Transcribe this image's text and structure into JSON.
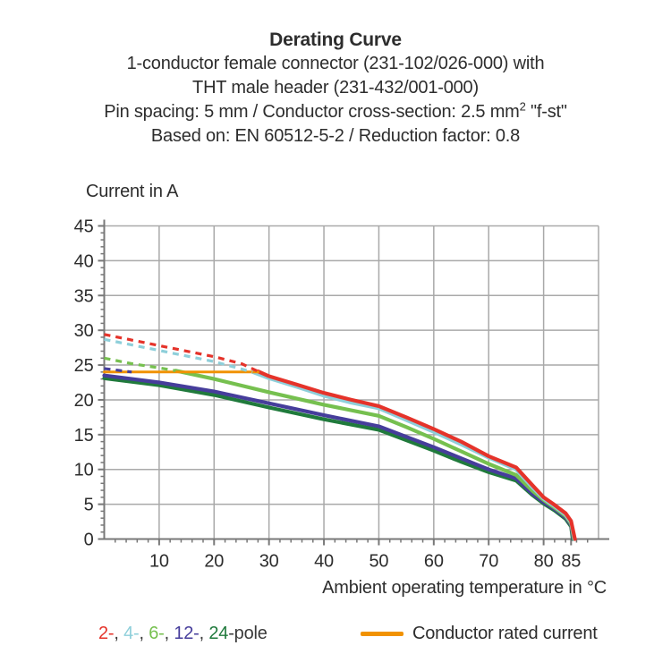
{
  "header": {
    "title": "Derating Curve",
    "subtitle1": "1-conductor female connector (231-102/026-000) with",
    "subtitle2": "THT male header (231-432/001-000)",
    "subtitle3_pre": "Pin spacing: 5 mm / Conductor cross-section: 2.5 mm",
    "subtitle3_sup": "2",
    "subtitle3_post": " \"f-st\"",
    "subtitle4": "Based on: EN 60512-5-2 / Reduction factor: 0.8"
  },
  "chart_data": {
    "type": "line",
    "title": "Derating Curve",
    "xlabel": "Ambient operating temperature in °C",
    "ylabel": "Current in A",
    "xlim": [
      0,
      90
    ],
    "ylim": [
      0,
      45
    ],
    "x_major_ticks": [
      10,
      20,
      30,
      40,
      50,
      60,
      70,
      80,
      85
    ],
    "x_minor_step": 2,
    "y_major_ticks": [
      0,
      5,
      10,
      15,
      20,
      25,
      30,
      35,
      40,
      45
    ],
    "y_minor_step": 1,
    "grid": true,
    "grid_x_step": 10,
    "grid_y_step": 5,
    "colors": {
      "grid": "#a9a9a9",
      "axis": "#787878",
      "text": "#2d2d2d"
    },
    "series": [
      {
        "name": "24-pole",
        "color": "#207a3c",
        "solid": [
          [
            0,
            23.1
          ],
          [
            10,
            22.1
          ],
          [
            20,
            20.7
          ],
          [
            30,
            18.9
          ],
          [
            40,
            17.2
          ],
          [
            50,
            15.7
          ],
          [
            55,
            14.2
          ],
          [
            60,
            12.7
          ],
          [
            65,
            11.1
          ],
          [
            70,
            9.6
          ],
          [
            75,
            8.4
          ],
          [
            78,
            6.3
          ],
          [
            80,
            5.1
          ],
          [
            82,
            4.1
          ],
          [
            84,
            2.9
          ],
          [
            85,
            1.8
          ],
          [
            85.3,
            0
          ]
        ]
      },
      {
        "name": "12-pole",
        "color": "#463d9b",
        "dashed": [
          [
            0,
            24.5
          ],
          [
            5,
            24.0
          ]
        ],
        "solid": [
          [
            0,
            23.5
          ],
          [
            10,
            22.5
          ],
          [
            20,
            21.2
          ],
          [
            30,
            19.5
          ],
          [
            40,
            17.8
          ],
          [
            50,
            16.2
          ],
          [
            55,
            14.7
          ],
          [
            60,
            13.2
          ],
          [
            65,
            11.6
          ],
          [
            70,
            10.0
          ],
          [
            75,
            8.7
          ],
          [
            78,
            6.5
          ],
          [
            80,
            5.3
          ],
          [
            82,
            4.3
          ],
          [
            84,
            3.1
          ],
          [
            85,
            2.0
          ],
          [
            85.4,
            0
          ]
        ]
      },
      {
        "name": "6-pole",
        "color": "#76c04f",
        "dashed": [
          [
            0,
            26.0
          ],
          [
            5,
            25.2
          ],
          [
            10,
            24.6
          ],
          [
            13,
            24.2
          ]
        ],
        "solid": [
          [
            13,
            24.2
          ],
          [
            20,
            23.0
          ],
          [
            30,
            21.1
          ],
          [
            40,
            19.3
          ],
          [
            50,
            17.7
          ],
          [
            55,
            16.1
          ],
          [
            60,
            14.4
          ],
          [
            65,
            12.6
          ],
          [
            70,
            10.8
          ],
          [
            75,
            9.2
          ],
          [
            78,
            6.9
          ],
          [
            80,
            5.6
          ],
          [
            82,
            4.5
          ],
          [
            84,
            3.3
          ],
          [
            85,
            2.2
          ],
          [
            85.5,
            0
          ]
        ]
      },
      {
        "name": "4-pole",
        "color": "#8ecfda",
        "dashed": [
          [
            0,
            28.7
          ],
          [
            10,
            27.1
          ],
          [
            20,
            25.5
          ],
          [
            27,
            24.0
          ]
        ],
        "solid": [
          [
            27,
            24.0
          ],
          [
            30,
            23.1
          ],
          [
            35,
            21.9
          ],
          [
            40,
            20.6
          ],
          [
            45,
            19.6
          ],
          [
            50,
            18.8
          ],
          [
            55,
            17.1
          ],
          [
            60,
            15.4
          ],
          [
            65,
            13.6
          ],
          [
            70,
            11.7
          ],
          [
            75,
            10.0
          ],
          [
            78,
            7.4
          ],
          [
            80,
            5.8
          ],
          [
            82,
            4.7
          ],
          [
            84,
            3.5
          ],
          [
            85,
            2.4
          ],
          [
            85.6,
            0
          ]
        ]
      },
      {
        "name": "2-pole",
        "color": "#e5332a",
        "dashed": [
          [
            0,
            29.4
          ],
          [
            10,
            27.8
          ],
          [
            20,
            26.2
          ],
          [
            25,
            25.2
          ],
          [
            28,
            24.1
          ]
        ],
        "solid": [
          [
            28,
            24.1
          ],
          [
            30,
            23.4
          ],
          [
            35,
            22.2
          ],
          [
            40,
            21.0
          ],
          [
            45,
            20.0
          ],
          [
            50,
            19.1
          ],
          [
            55,
            17.5
          ],
          [
            60,
            15.8
          ],
          [
            65,
            14.0
          ],
          [
            70,
            11.9
          ],
          [
            75,
            10.3
          ],
          [
            78,
            7.7
          ],
          [
            80,
            6.0
          ],
          [
            82,
            4.9
          ],
          [
            84,
            3.7
          ],
          [
            85,
            2.6
          ],
          [
            85.7,
            0
          ]
        ]
      },
      {
        "name": "Conductor rated current",
        "color": "#f19200",
        "solid": [
          [
            0,
            24.0
          ],
          [
            28,
            24.0
          ]
        ]
      }
    ]
  },
  "legend": {
    "pole_segments": [
      {
        "text": "2-",
        "color": "#e5332a"
      },
      {
        "text": ", ",
        "color": "#3a3a3a"
      },
      {
        "text": "4-",
        "color": "#8ecfda"
      },
      {
        "text": ", ",
        "color": "#3a3a3a"
      },
      {
        "text": "6-",
        "color": "#76c04f"
      },
      {
        "text": ", ",
        "color": "#3a3a3a"
      },
      {
        "text": "12-",
        "color": "#463d9b"
      },
      {
        "text": ", ",
        "color": "#3a3a3a"
      },
      {
        "text": "24",
        "color": "#207a3c"
      },
      {
        "text": "-pole",
        "color": "#3a3a3a"
      }
    ],
    "rated_label": "Conductor rated current",
    "rated_color": "#f19200"
  }
}
